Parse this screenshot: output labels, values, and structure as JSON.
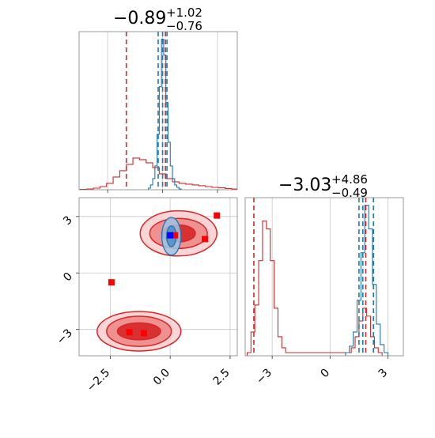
{
  "colors": {
    "red": "#d62728",
    "blue": "#1f77b4",
    "grid": "#c8c8c8",
    "red_fill_light": "#f4a0a0",
    "red_fill_dark": "#d62728",
    "blue_fill": "#8fb7de",
    "marker_red": "#ff0000",
    "marker_blue": "#0000ff"
  },
  "chart_data": [
    {
      "type": "histogram",
      "panel": "top-left (parameter 1 marginal)",
      "title_value": "−0.89",
      "title_sup": "+1.02",
      "title_sub": "−0.76",
      "xlim": [
        -3.8,
        3.4
      ],
      "grid": true,
      "x_ticks": [
        -2.5,
        0.0,
        2.5
      ],
      "series": [
        {
          "color": "red",
          "bin_centers": [
            -3.6,
            -3.3,
            -3.0,
            -2.7,
            -2.4,
            -2.1,
            -1.8,
            -1.5,
            -1.2,
            -0.9,
            -0.6,
            -0.3,
            0.0,
            0.3,
            0.6,
            0.9,
            1.2,
            1.5,
            1.8,
            2.1,
            2.4,
            2.7,
            3.0,
            3.3
          ],
          "counts": [
            0.002,
            0.005,
            0.01,
            0.02,
            0.04,
            0.08,
            0.12,
            0.16,
            0.2,
            0.19,
            0.17,
            0.14,
            0.1,
            0.07,
            0.05,
            0.04,
            0.035,
            0.03,
            0.025,
            0.02,
            0.015,
            0.012,
            0.008,
            0.005
          ]
        },
        {
          "color": "blue",
          "bin_centers": [
            -0.6,
            -0.5,
            -0.4,
            -0.3,
            -0.2,
            -0.1,
            0.0,
            0.1,
            0.2,
            0.3,
            0.4,
            0.5,
            0.6,
            0.7,
            0.8
          ],
          "counts": [
            0.01,
            0.03,
            0.07,
            0.15,
            0.35,
            0.65,
            0.95,
            0.85,
            0.55,
            0.3,
            0.15,
            0.07,
            0.03,
            0.015,
            0.005
          ]
        }
      ],
      "vlines": [
        {
          "x": -1.65,
          "color": "red"
        },
        {
          "x": 0.13,
          "color": "red"
        },
        {
          "x": -0.2,
          "color": "blue"
        },
        {
          "x": 0.0,
          "color": "blue"
        },
        {
          "x": 0.2,
          "color": "blue"
        }
      ]
    },
    {
      "type": "contour",
      "panel": "bottom-left (joint)",
      "xlim": [
        -3.8,
        2.8
      ],
      "ylim": [
        -4.4,
        4.0
      ],
      "grid": true,
      "x_ticks": [
        "−2.5",
        "0.0",
        "2.5"
      ],
      "y_ticks": [
        "−3",
        "0",
        "3"
      ],
      "x_tick_values": [
        -2.5,
        0.0,
        2.5
      ],
      "y_tick_values": [
        -3,
        0,
        3
      ],
      "red_contours": [
        {
          "cx": -1.3,
          "cy": -3.1,
          "rx_levels": [
            1.75,
            1.35,
            0.9
          ],
          "ry_levels": [
            1.05,
            0.8,
            0.45
          ]
        },
        {
          "cx": 0.35,
          "cy": 2.1,
          "rx_levels": [
            1.6,
            1.2,
            0.7
          ],
          "ry_levels": [
            1.2,
            0.8,
            0.45
          ]
        }
      ],
      "blue_contours": [
        {
          "cx": 0.05,
          "cy": 1.95,
          "rx_levels": [
            0.4,
            0.2
          ],
          "ry_levels": [
            1.0,
            0.55
          ]
        }
      ],
      "red_markers": [
        {
          "x": 1.95,
          "y": 3.05
        },
        {
          "x": 1.45,
          "y": 1.8
        },
        {
          "x": -2.45,
          "y": -0.5
        },
        {
          "x": -1.7,
          "y": -3.15
        },
        {
          "x": -1.1,
          "y": -3.2
        },
        {
          "x": 0.2,
          "y": 2.0
        }
      ],
      "blue_markers": [
        {
          "x": 0.0,
          "y": 2.0
        }
      ]
    },
    {
      "type": "histogram",
      "panel": "bottom-right (parameter 2 marginal)",
      "title_value": "−3.03",
      "title_sup": "+4.86",
      "title_sub": "−0.49",
      "xlim": [
        -4.4,
        3.8
      ],
      "grid": true,
      "x_ticks": [
        "−3",
        "0",
        "3"
      ],
      "x_tick_values": [
        -3,
        0,
        3
      ],
      "series": [
        {
          "color": "red",
          "bin_centers": [
            -4.2,
            -4.0,
            -3.8,
            -3.6,
            -3.4,
            -3.2,
            -3.0,
            -2.8,
            -2.6,
            -2.4,
            -2.2,
            1.0,
            1.2,
            1.4,
            1.6,
            1.8,
            2.0,
            2.2,
            2.4,
            2.6
          ],
          "counts": [
            0.02,
            0.15,
            0.32,
            0.6,
            0.85,
            0.8,
            0.6,
            0.3,
            0.12,
            0.05,
            0.02,
            0.02,
            0.05,
            0.12,
            0.22,
            0.3,
            0.25,
            0.12,
            0.05,
            0.02
          ]
        },
        {
          "color": "blue",
          "bin_centers": [
            0.9,
            1.1,
            1.3,
            1.5,
            1.7,
            1.9,
            2.1,
            2.3,
            2.5,
            2.7,
            2.9
          ],
          "counts": [
            0.02,
            0.06,
            0.15,
            0.35,
            0.65,
            0.95,
            0.8,
            0.45,
            0.2,
            0.07,
            0.02
          ]
        }
      ],
      "vlines": [
        {
          "x": -3.95,
          "color": "red"
        },
        {
          "x": 1.85,
          "color": "red"
        },
        {
          "x": 1.5,
          "color": "blue"
        },
        {
          "x": 1.7,
          "color": "blue"
        },
        {
          "x": 2.25,
          "color": "blue"
        }
      ]
    }
  ],
  "texts": {
    "title1_value": "−0.89",
    "title1_sup": "+1.02",
    "title1_sub": "−0.76",
    "title2_value": "−3.03",
    "title2_sup": "+4.86",
    "title2_sub": "−0.49"
  }
}
